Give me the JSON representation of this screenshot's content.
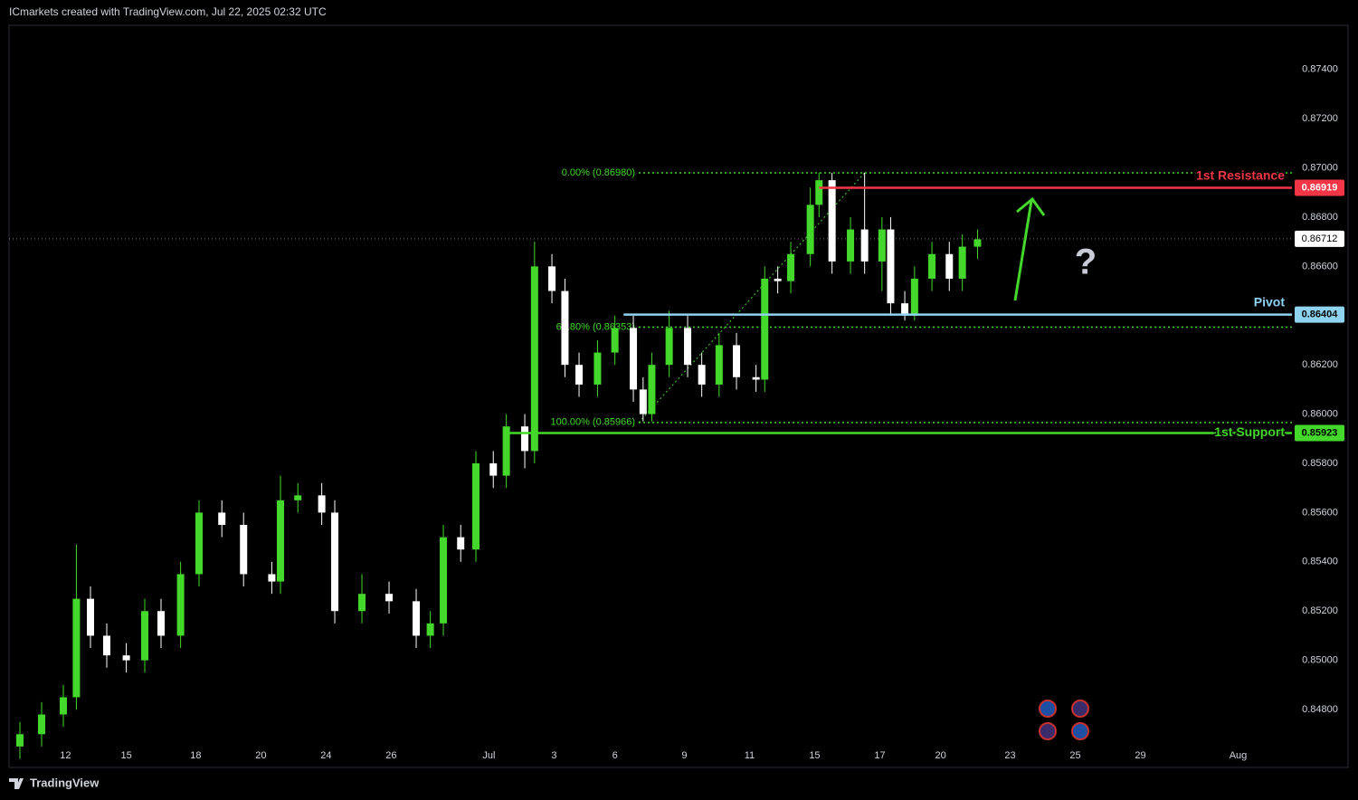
{
  "header": "ICmarkets created with TradingView.com, Jul 22, 2025 02:32 UTC",
  "footer": "TradingView",
  "chart_data": {
    "type": "candlestick",
    "up_color": "#45d82c",
    "down_color": "#ffffff",
    "x": [
      0.5,
      1.5,
      2.5,
      3.1,
      3.75,
      4.5,
      5.4,
      6.25,
      7,
      7.9,
      8.75,
      9.8,
      10.8,
      12.1,
      12.5,
      13.3,
      14.4,
      15,
      16.25,
      17.5,
      18.75,
      19.4,
      20,
      20.8,
      21.5,
      22.3,
      22.9,
      23.75,
      24.2,
      25,
      25.6,
      26.25,
      27.1,
      27.9,
      28.75,
      29.2,
      29.6,
      30.4,
      31.25,
      31.9,
      32.7,
      33.5,
      34.4,
      34.8,
      35.4,
      36,
      36.9,
      37.3,
      37.9,
      38.75,
      39.4,
      40.2,
      40.6,
      41.25,
      41.7,
      42.5,
      43.3,
      43.9,
      44.6
    ],
    "open": [
      0.8465,
      0.847,
      0.8478,
      0.8485,
      0.8525,
      0.851,
      0.8502,
      0.85,
      0.852,
      0.851,
      0.8535,
      0.856,
      0.8555,
      0.8535,
      0.8532,
      0.8565,
      0.8567,
      0.856,
      0.852,
      0.8527,
      0.8524,
      0.851,
      0.8515,
      0.855,
      0.8545,
      0.858,
      0.8575,
      0.8595,
      0.8585,
      0.866,
      0.865,
      0.862,
      0.8612,
      0.8625,
      0.8635,
      0.861,
      0.86,
      0.862,
      0.8635,
      0.862,
      0.8612,
      0.8628,
      0.8615,
      0.8614,
      0.8655,
      0.8654,
      0.8665,
      0.8685,
      0.8695,
      0.8662,
      0.8675,
      0.8662,
      0.8675,
      0.8645,
      0.864,
      0.8655,
      0.8665,
      0.8655,
      0.8668
    ],
    "high": [
      0.8475,
      0.8483,
      0.849,
      0.8547,
      0.853,
      0.8515,
      0.8507,
      0.8525,
      0.8525,
      0.854,
      0.8565,
      0.8565,
      0.856,
      0.854,
      0.8575,
      0.8572,
      0.8572,
      0.8565,
      0.8535,
      0.8532,
      0.8529,
      0.852,
      0.8555,
      0.8555,
      0.8585,
      0.8585,
      0.86,
      0.86,
      0.867,
      0.8665,
      0.8655,
      0.8625,
      0.863,
      0.864,
      0.864,
      0.8615,
      0.8625,
      0.8642,
      0.864,
      0.8625,
      0.8633,
      0.8633,
      0.862,
      0.866,
      0.866,
      0.867,
      0.8692,
      0.8698,
      0.8698,
      0.868,
      0.8698,
      0.868,
      0.868,
      0.865,
      0.866,
      0.867,
      0.867,
      0.8673,
      0.8675
    ],
    "low": [
      0.846,
      0.8465,
      0.8473,
      0.848,
      0.8505,
      0.8497,
      0.8495,
      0.8495,
      0.8505,
      0.8505,
      0.853,
      0.855,
      0.853,
      0.8527,
      0.8527,
      0.856,
      0.8555,
      0.8515,
      0.8515,
      0.8519,
      0.8505,
      0.8505,
      0.851,
      0.854,
      0.854,
      0.857,
      0.857,
      0.8578,
      0.858,
      0.8645,
      0.8615,
      0.8607,
      0.8607,
      0.862,
      0.8605,
      0.8597,
      0.8597,
      0.8615,
      0.8615,
      0.8607,
      0.8607,
      0.861,
      0.8609,
      0.8609,
      0.8649,
      0.8649,
      0.866,
      0.868,
      0.8657,
      0.8657,
      0.8657,
      0.865,
      0.864,
      0.8638,
      0.8638,
      0.865,
      0.865,
      0.865,
      0.8663
    ],
    "close": [
      0.847,
      0.8478,
      0.8485,
      0.8525,
      0.851,
      0.8502,
      0.85,
      0.852,
      0.851,
      0.8535,
      0.856,
      0.8555,
      0.8535,
      0.8532,
      0.8565,
      0.8567,
      0.856,
      0.852,
      0.8527,
      0.8524,
      0.851,
      0.8515,
      0.855,
      0.8545,
      0.858,
      0.8575,
      0.8595,
      0.8585,
      0.866,
      0.865,
      0.862,
      0.8612,
      0.8625,
      0.8635,
      0.861,
      0.86,
      0.862,
      0.8635,
      0.862,
      0.8612,
      0.8628,
      0.8615,
      0.8614,
      0.8655,
      0.8654,
      0.8665,
      0.8685,
      0.8695,
      0.8662,
      0.8675,
      0.8662,
      0.8675,
      0.8645,
      0.864,
      0.8655,
      0.8665,
      0.8655,
      0.8668,
      0.8671
    ],
    "xlim": [
      0,
      59.08
    ],
    "xticks": [
      {
        "value": 2.6,
        "label": "12"
      },
      {
        "value": 5.4,
        "label": "15"
      },
      {
        "value": 8.6,
        "label": "18"
      },
      {
        "value": 11.6,
        "label": "20"
      },
      {
        "value": 14.6,
        "label": "24"
      },
      {
        "value": 17.6,
        "label": "26"
      },
      {
        "value": 22.1,
        "label": "Jul"
      },
      {
        "value": 25.1,
        "label": "3"
      },
      {
        "value": 27.9,
        "label": "6"
      },
      {
        "value": 31.1,
        "label": "9"
      },
      {
        "value": 34.1,
        "label": "11"
      },
      {
        "value": 37.1,
        "label": "15"
      },
      {
        "value": 40.1,
        "label": "17"
      },
      {
        "value": 42.9,
        "label": "20"
      },
      {
        "value": 46.1,
        "label": "23"
      },
      {
        "value": 49.1,
        "label": "25"
      },
      {
        "value": 52.1,
        "label": "29"
      },
      {
        "value": 56.6,
        "label": "Aug"
      }
    ],
    "ylim": [
      0.84565,
      0.87579
    ],
    "yticks": [
      {
        "value": 0.848,
        "label": "0.84800"
      },
      {
        "value": 0.85,
        "label": "0.85000"
      },
      {
        "value": 0.852,
        "label": "0.85200"
      },
      {
        "value": 0.854,
        "label": "0.85400"
      },
      {
        "value": 0.856,
        "label": "0.85600"
      },
      {
        "value": 0.858,
        "label": "0.85800"
      },
      {
        "value": 0.86,
        "label": "0.86000"
      },
      {
        "value": 0.862,
        "label": "0.86200"
      },
      {
        "value": 0.864,
        "label": "0.86400"
      },
      {
        "value": 0.866,
        "label": "0.86600"
      },
      {
        "value": 0.868,
        "label": "0.86800"
      },
      {
        "value": 0.87,
        "label": "0.87000"
      },
      {
        "value": 0.872,
        "label": "0.87200"
      },
      {
        "value": 0.874,
        "label": "0.87400"
      }
    ],
    "levels": [
      {
        "name": "1st Resistance",
        "value": 0.86919,
        "value_label": "0.86919",
        "color": "#f23645",
        "x_start": 37.3
      },
      {
        "name": "Pivot",
        "value": 0.86404,
        "value_label": "0.86404",
        "color": "#8fd3f0",
        "x_start": 28.3
      },
      {
        "name": "1st Support",
        "value": 0.85923,
        "value_label": "0.85923",
        "color": "#45d82c",
        "x_start": 22.9
      }
    ],
    "last_price": {
      "value": 0.86712,
      "label": "0.86712"
    },
    "fib_color": "#45d82c",
    "fib_x": [
      29.0,
      39.4
    ],
    "fib_levels": [
      {
        "value": 0.8698,
        "label": "0.00% (0.86980)"
      },
      {
        "value": 0.86353,
        "label": "61.80% (0.86353)"
      },
      {
        "value": 0.85966,
        "label": "100.00% (0.85966)"
      }
    ],
    "annotation": "?"
  }
}
